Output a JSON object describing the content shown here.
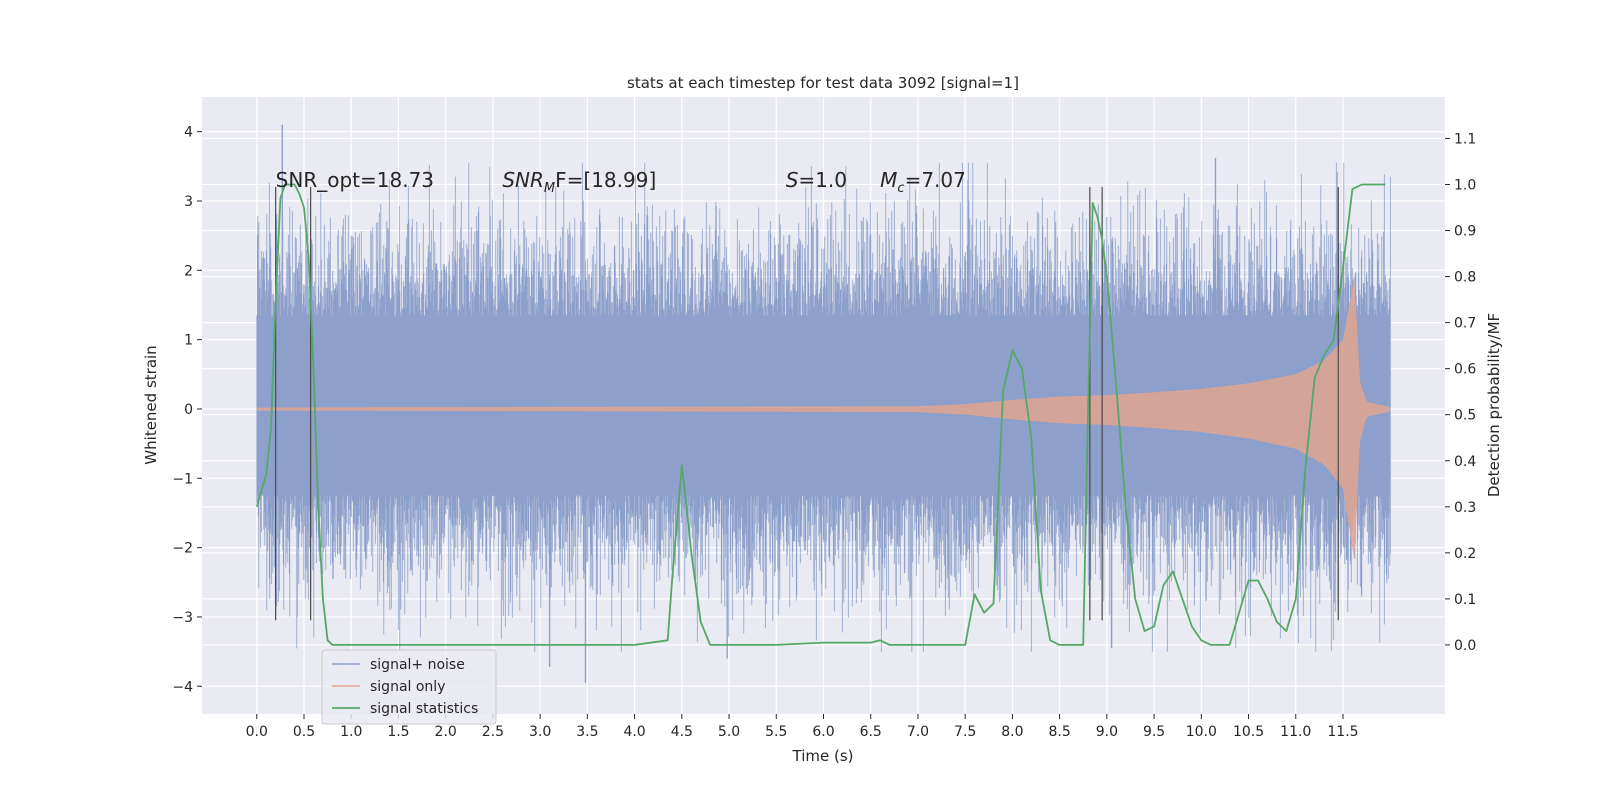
{
  "chart_data": {
    "type": "line",
    "title": "stats at each timestep for test data 3092 [signal=1]",
    "xlabel": "Time (s)",
    "ylabel": "Whitened strain",
    "y2label": "Detection probability/MF",
    "xlim": [
      -0.58,
      12.58
    ],
    "ylim": [
      -4.4,
      4.5
    ],
    "y2lim": [
      -0.15,
      1.19
    ],
    "x_ticks": [
      0.0,
      0.5,
      1.0,
      1.5,
      2.0,
      2.5,
      3.0,
      3.5,
      4.0,
      4.5,
      5.0,
      5.5,
      6.0,
      6.5,
      7.0,
      7.5,
      8.0,
      8.5,
      9.0,
      9.5,
      10.0,
      10.5,
      11.0,
      11.5
    ],
    "x_tick_labels": [
      "0.0",
      "0.5",
      "1.0",
      "1.5",
      "2.0",
      "2.5",
      "3.0",
      "3.5",
      "4.0",
      "4.5",
      "5.0",
      "5.5",
      "6.0",
      "6.5",
      "7.0",
      "7.5",
      "8.0",
      "8.5",
      "9.0",
      "9.5",
      "10.0",
      "10.5",
      "11.0",
      "11.5"
    ],
    "y_ticks": [
      -4,
      -3,
      -2,
      -1,
      0,
      1,
      2,
      3,
      4
    ],
    "y_tick_labels": [
      "−4",
      "−3",
      "−2",
      "−1",
      "0",
      "1",
      "2",
      "3",
      "4"
    ],
    "y2_ticks": [
      0.0,
      0.1,
      0.2,
      0.3,
      0.4,
      0.5,
      0.6,
      0.7,
      0.8,
      0.9,
      1.0,
      1.1
    ],
    "y2_tick_labels": [
      "0.0",
      "0.1",
      "0.2",
      "0.3",
      "0.4",
      "0.5",
      "0.6",
      "0.7",
      "0.8",
      "0.9",
      "1.0",
      "1.1"
    ],
    "grid": true,
    "legend_position": "lower-left",
    "annotations": [
      {
        "text": "SNR_opt=18.73",
        "x": 0.2,
        "y": 3.2
      },
      {
        "text": "SNR",
        "sub": "M",
        "tail": "F=[18.99]",
        "x": 2.6,
        "y": 3.2
      },
      {
        "text": "S",
        "tail": "=1.0",
        "x": 5.6,
        "y": 3.2
      },
      {
        "text": "M",
        "sub": "c",
        "tail": "=7.07",
        "x": 6.6,
        "y": 3.2
      }
    ],
    "series": [
      {
        "name": "signal+ noise",
        "color": "#8da0cb",
        "kind": "noise",
        "x_range": [
          0.0,
          12.0
        ],
        "core_band": [
          -1.25,
          1.35
        ],
        "approx_extremes": {
          "max": 4.1,
          "min": -3.95
        }
      },
      {
        "name": "signal only",
        "color": "#e0a48f",
        "kind": "chirp",
        "x_range": [
          0.0,
          12.0
        ],
        "envelope": [
          {
            "x": 0.0,
            "y": 0.02
          },
          {
            "x": 7.0,
            "y": 0.04
          },
          {
            "x": 7.5,
            "y": 0.07
          },
          {
            "x": 8.0,
            "y": 0.13
          },
          {
            "x": 8.5,
            "y": 0.18
          },
          {
            "x": 9.0,
            "y": 0.2
          },
          {
            "x": 9.5,
            "y": 0.24
          },
          {
            "x": 10.0,
            "y": 0.29
          },
          {
            "x": 10.5,
            "y": 0.37
          },
          {
            "x": 11.0,
            "y": 0.5
          },
          {
            "x": 11.3,
            "y": 0.7
          },
          {
            "x": 11.5,
            "y": 1.0
          },
          {
            "x": 11.62,
            "y": 1.9
          },
          {
            "x": 11.68,
            "y": 0.4
          },
          {
            "x": 11.75,
            "y": 0.1
          },
          {
            "x": 12.0,
            "y": 0.03
          }
        ]
      },
      {
        "name": "signal statistics",
        "color": "#55a868",
        "kind": "line",
        "axis": "right",
        "x": [
          0.0,
          0.1,
          0.15,
          0.2,
          0.25,
          0.3,
          0.4,
          0.45,
          0.5,
          0.55,
          0.6,
          0.65,
          0.7,
          0.75,
          0.8,
          0.85,
          0.9,
          1.0,
          1.5,
          2.0,
          3.0,
          4.0,
          4.35,
          4.4,
          4.5,
          4.55,
          4.6,
          4.7,
          4.8,
          4.9,
          5.0,
          5.5,
          6.0,
          6.5,
          6.6,
          6.7,
          7.0,
          7.5,
          7.6,
          7.7,
          7.8,
          7.9,
          8.0,
          8.1,
          8.2,
          8.3,
          8.4,
          8.5,
          8.6,
          8.75,
          8.8,
          8.85,
          8.9,
          8.95,
          9.0,
          9.1,
          9.2,
          9.3,
          9.4,
          9.5,
          9.6,
          9.7,
          9.8,
          9.9,
          10.0,
          10.1,
          10.2,
          10.3,
          10.4,
          10.5,
          10.6,
          10.7,
          10.8,
          10.9,
          11.0,
          11.1,
          11.2,
          11.3,
          11.4,
          11.5,
          11.6,
          11.7,
          11.95
        ],
        "y": [
          0.3,
          0.37,
          0.47,
          0.75,
          0.97,
          1.0,
          1.0,
          0.98,
          0.95,
          0.84,
          0.6,
          0.3,
          0.1,
          0.01,
          0.0,
          0.0,
          0.0,
          0.0,
          0.0,
          0.0,
          0.0,
          0.0,
          0.01,
          0.15,
          0.39,
          0.3,
          0.2,
          0.05,
          0.0,
          0.0,
          0.0,
          0.0,
          0.005,
          0.005,
          0.01,
          0.0,
          0.0,
          0.0,
          0.11,
          0.07,
          0.09,
          0.55,
          0.64,
          0.6,
          0.45,
          0.12,
          0.01,
          0.0,
          0.0,
          0.0,
          0.5,
          0.96,
          0.93,
          0.88,
          0.8,
          0.56,
          0.3,
          0.1,
          0.03,
          0.04,
          0.13,
          0.16,
          0.1,
          0.04,
          0.01,
          0.0,
          0.0,
          0.0,
          0.07,
          0.14,
          0.14,
          0.1,
          0.05,
          0.03,
          0.1,
          0.38,
          0.58,
          0.63,
          0.66,
          0.82,
          0.99,
          1.0,
          1.0
        ]
      }
    ],
    "vertical_markers": {
      "color": "#4a4a4a",
      "x": [
        0.2,
        0.57,
        8.82,
        8.95,
        11.45
      ],
      "y_range": [
        -3.05,
        3.2
      ]
    }
  }
}
